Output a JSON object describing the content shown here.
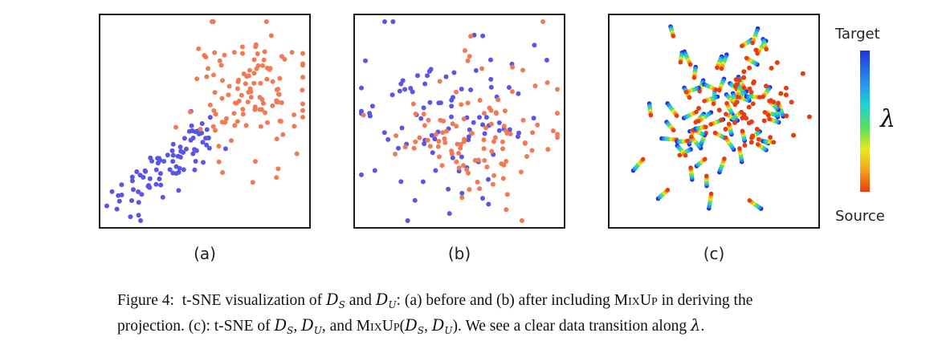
{
  "panels": [
    {
      "label": "(a)"
    },
    {
      "label": "(b)"
    },
    {
      "label": "(c)"
    }
  ],
  "colorbar": {
    "top_label": "Target",
    "bottom_label": "Source",
    "symbol": "λ",
    "colors": [
      "#1d36d8",
      "#2a8ef0",
      "#20d0d8",
      "#59e05a",
      "#e8e820",
      "#f5a11c",
      "#e83c10"
    ]
  },
  "point_colors": {
    "source": "#f07a55",
    "target": "#5a55e6"
  },
  "caption": {
    "prefix": "Figure 4:",
    "line1_a": "t-SNE visualization of",
    "D_S": "D",
    "S": "S",
    "and": "and",
    "D_U": "D",
    "U": "U",
    "line1_b": ": (a) before and (b) after including",
    "mixup": "MixUp",
    "line1_c": "in deriving the",
    "line2_a": "projection. (c): t-SNE of",
    "comma1": ",",
    "line2_b": ", and",
    "mixup2": "MixUp",
    "line2_c": "). We see a clear data transition along",
    "lambda": "λ",
    "period": "."
  }
}
